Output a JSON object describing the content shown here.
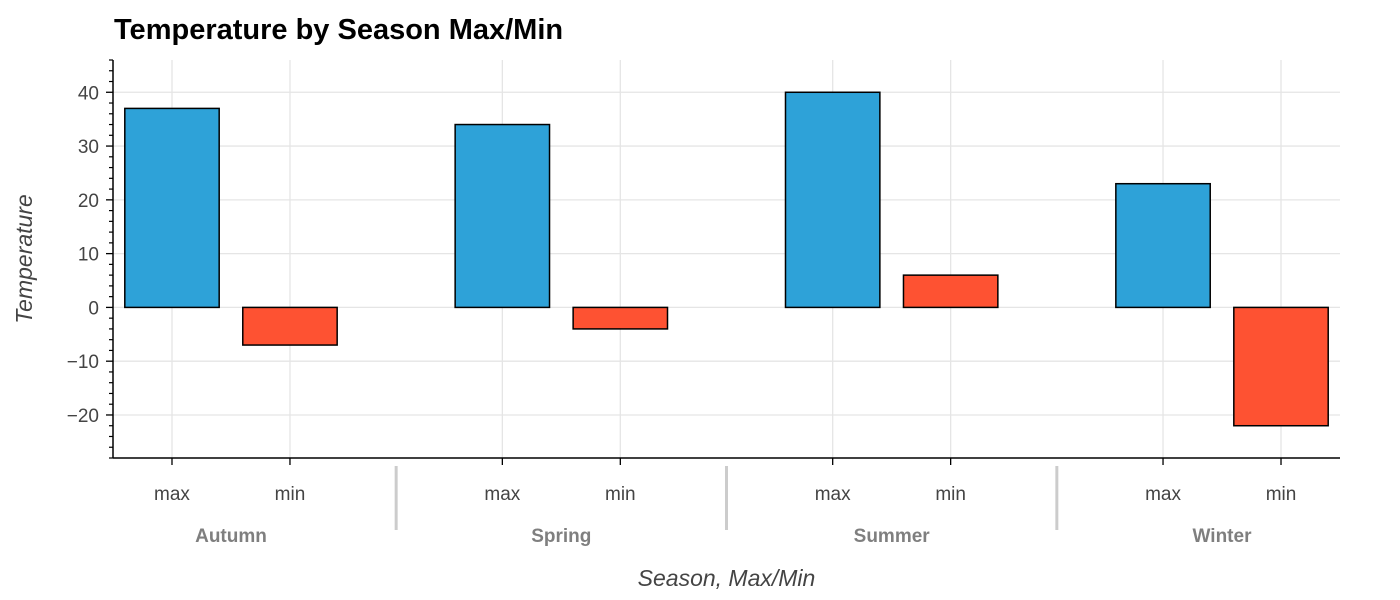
{
  "chart_data": {
    "type": "bar",
    "title": "Temperature by Season Max/Min",
    "xlabel": "Season, Max/Min",
    "ylabel": "Temperature",
    "groups": [
      "Autumn",
      "Spring",
      "Summer",
      "Winter"
    ],
    "subcategories": [
      "max",
      "min"
    ],
    "series": [
      {
        "values": [
          37,
          34,
          40,
          23
        ],
        "color": "#2ea2d8"
      },
      {
        "values": [
          -7,
          -4,
          6,
          -22
        ],
        "color": "#fe5232"
      }
    ],
    "ylim": [
      -28,
      46
    ],
    "yticks": [
      "40",
      "30",
      "20",
      "10",
      "0",
      "−10",
      "−20"
    ],
    "ytick_values": [
      40,
      30,
      20,
      10,
      0,
      -10,
      -20
    ],
    "grid": true,
    "legend": "none"
  }
}
